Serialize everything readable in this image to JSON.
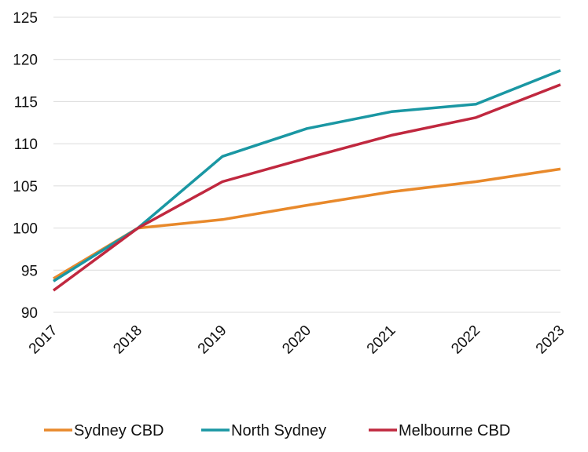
{
  "chart_data": {
    "type": "line",
    "x": [
      "2017",
      "2018",
      "2019",
      "2020",
      "2021",
      "2022",
      "2023"
    ],
    "ylim": [
      90,
      125
    ],
    "yticks": [
      90,
      95,
      100,
      105,
      110,
      115,
      120,
      125
    ],
    "grid": true,
    "legend_position": "bottom",
    "series": [
      {
        "name": "Sydney CBD",
        "color": "#E8892B",
        "values": [
          94.0,
          100.0,
          101.0,
          102.7,
          104.3,
          105.5,
          107.0
        ]
      },
      {
        "name": "North Sydney",
        "color": "#1A97A3",
        "values": [
          93.7,
          100.0,
          108.5,
          111.8,
          113.8,
          114.7,
          118.7
        ]
      },
      {
        "name": "Melbourne CBD",
        "color": "#C0283F",
        "values": [
          92.6,
          100.0,
          105.5,
          108.3,
          111.0,
          113.1,
          117.0
        ]
      }
    ]
  }
}
